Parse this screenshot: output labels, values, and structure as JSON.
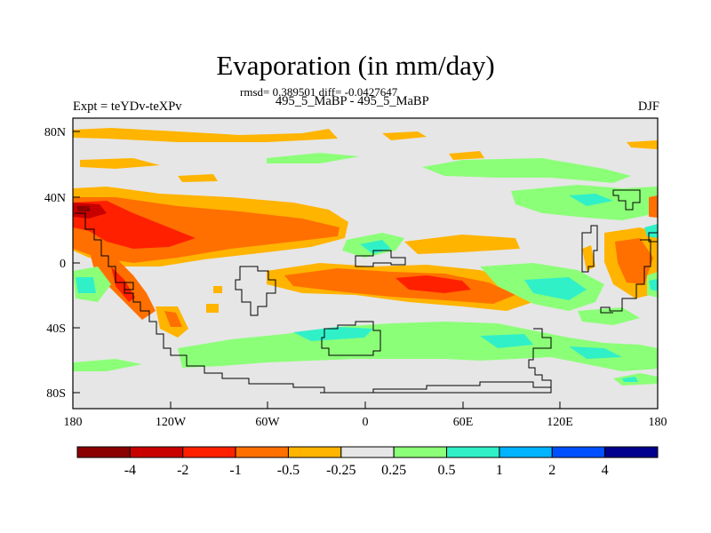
{
  "header": {
    "title": "Evaporation (in mm/day)",
    "stats": "rmsd= 0.389501 diff= -0.0427647",
    "subtitle": "495_5_MaBP - 495_5_MaBP",
    "left_label": "Expt = teYDv-teXPv",
    "right_label": "DJF"
  },
  "axes": {
    "x_ticks": [
      "180",
      "120W",
      "60W",
      "0",
      "60E",
      "120E",
      "180"
    ],
    "y_ticks": [
      "80N",
      "40N",
      "0",
      "40S",
      "80S"
    ]
  },
  "colorbar": {
    "colors": [
      "#8b0000",
      "#c80000",
      "#ff2000",
      "#ff7000",
      "#ffb400",
      "#e6e6e6",
      "#8cff78",
      "#30f0c8",
      "#00b4ff",
      "#0050ff",
      "#00008c"
    ],
    "labels": [
      "-4",
      "-2",
      "-1",
      "-0.5",
      "-0.25",
      "0.25",
      "0.5",
      "1",
      "2",
      "4"
    ]
  },
  "map_data": {
    "type": "contour-fill",
    "field": "Evaporation difference",
    "units": "mm/day",
    "season": "DJF",
    "lon_range": [
      -180,
      180
    ],
    "lat_range": [
      -90,
      90
    ],
    "levels": [
      -4,
      -2,
      -1,
      -0.5,
      -0.25,
      0.25,
      0.5,
      1,
      2,
      4
    ],
    "rmsd": 0.389501,
    "diff": -0.0427647
  }
}
